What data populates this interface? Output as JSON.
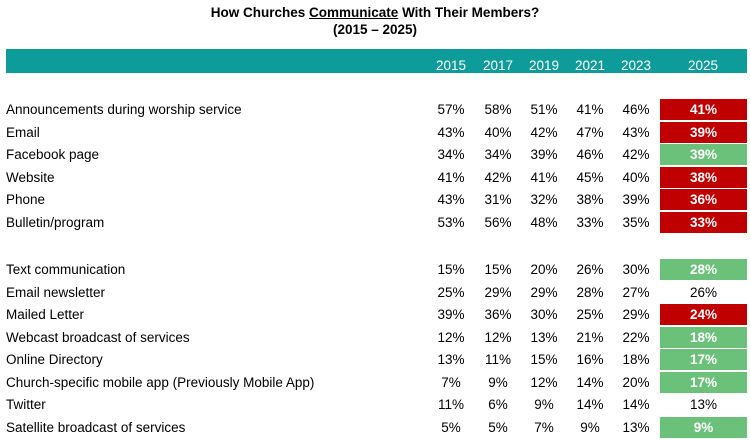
{
  "title_prefix": "How Churches ",
  "title_emph": "Communicate",
  "title_suffix": " With Their  Members?",
  "subtitle": "(2015 – 2025)",
  "colors": {
    "header": "#0e9c9b",
    "decrease": "#c00000",
    "increase": "#6cc17a"
  },
  "chart_data": {
    "type": "table",
    "title": "How Churches Communicate With Their  Members?",
    "subtitle": "(2015 – 2025)",
    "columns": [
      "2015",
      "2017",
      "2019",
      "2021",
      "2023",
      "2025"
    ],
    "groups": [
      {
        "rows": [
          {
            "label": "Announcements during worship service",
            "values": [
              "57%",
              "58%",
              "51%",
              "41%",
              "46%"
            ],
            "v2025": "41%",
            "highlight": "decrease"
          },
          {
            "label": "Email",
            "values": [
              "43%",
              "40%",
              "42%",
              "47%",
              "43%"
            ],
            "v2025": "39%",
            "highlight": "decrease"
          },
          {
            "label": "Facebook page",
            "values": [
              "34%",
              "34%",
              "39%",
              "46%",
              "42%"
            ],
            "v2025": "39%",
            "highlight": "increase"
          },
          {
            "label": "Website",
            "values": [
              "41%",
              "42%",
              "41%",
              "45%",
              "40%"
            ],
            "v2025": "38%",
            "highlight": "decrease"
          },
          {
            "label": "Phone",
            "values": [
              "43%",
              "31%",
              "32%",
              "38%",
              "39%"
            ],
            "v2025": "36%",
            "highlight": "decrease"
          },
          {
            "label": "Bulletin/program",
            "values": [
              "53%",
              "56%",
              "48%",
              "33%",
              "35%"
            ],
            "v2025": "33%",
            "highlight": "decrease"
          }
        ]
      },
      {
        "rows": [
          {
            "label": "Text communication",
            "values": [
              "15%",
              "15%",
              "20%",
              "26%",
              "30%"
            ],
            "v2025": "28%",
            "highlight": "increase"
          },
          {
            "label": "Email newsletter",
            "values": [
              "25%",
              "29%",
              "29%",
              "28%",
              "27%"
            ],
            "v2025": "26%",
            "highlight": "none"
          },
          {
            "label": "Mailed Letter",
            "values": [
              "39%",
              "36%",
              "30%",
              "25%",
              "29%"
            ],
            "v2025": "24%",
            "highlight": "decrease"
          },
          {
            "label": "Webcast broadcast of services",
            "values": [
              "12%",
              "12%",
              "13%",
              "21%",
              "22%"
            ],
            "v2025": "18%",
            "highlight": "increase"
          },
          {
            "label": "Online Directory",
            "values": [
              "13%",
              "11%",
              "15%",
              "16%",
              "18%"
            ],
            "v2025": "17%",
            "highlight": "increase"
          },
          {
            "label": "Church-specific mobile app (Previously Mobile App)",
            "values": [
              "7%",
              "9%",
              "12%",
              "14%",
              "20%"
            ],
            "v2025": "17%",
            "highlight": "increase"
          },
          {
            "label": "Twitter",
            "values": [
              "11%",
              "6%",
              "9%",
              "14%",
              "14%"
            ],
            "v2025": "13%",
            "highlight": "none"
          },
          {
            "label": "Satellite broadcast of services",
            "values": [
              "5%",
              "5%",
              "7%",
              "9%",
              "13%"
            ],
            "v2025": "9%",
            "highlight": "increase"
          }
        ]
      }
    ]
  }
}
